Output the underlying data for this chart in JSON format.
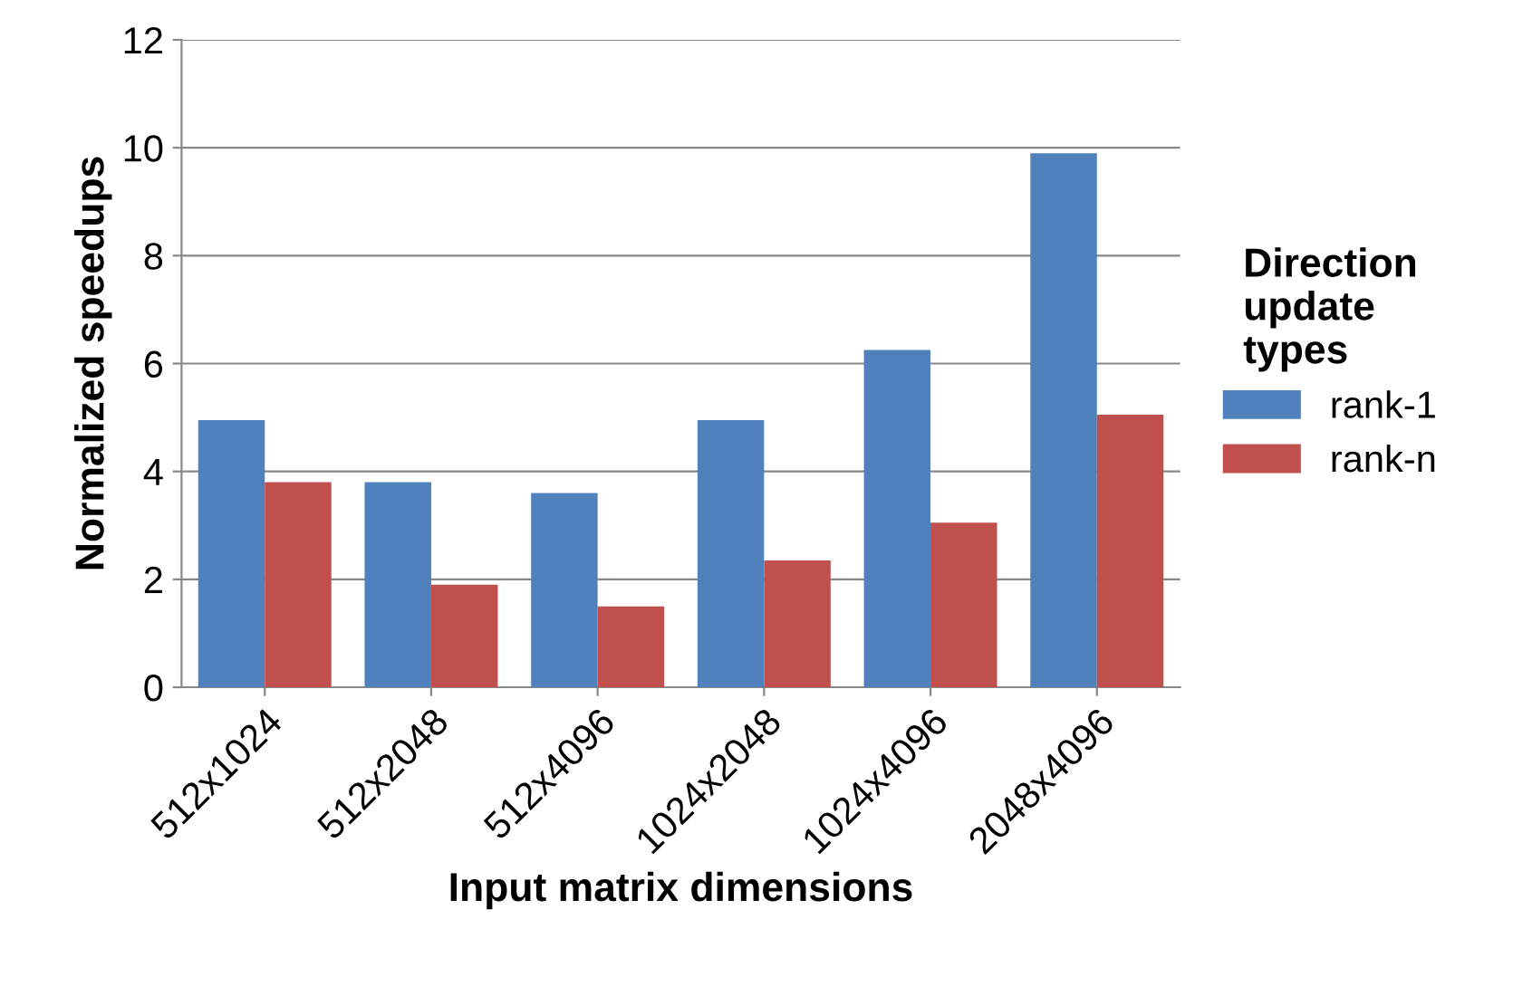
{
  "chart_data": {
    "type": "bar",
    "xlabel": "Input matrix dimensions",
    "ylabel": "Normalized speedups",
    "legend_title": "Direction\nupdate\ntypes",
    "categories": [
      "512x1024",
      "512x2048",
      "512x4096",
      "1024x2048",
      "1024x4096",
      "2048x4096"
    ],
    "series": [
      {
        "name": "rank-1",
        "color": "#4f81bd",
        "values": [
          4.95,
          3.8,
          3.6,
          4.95,
          6.25,
          9.9
        ]
      },
      {
        "name": "rank-n",
        "color": "#c0504d",
        "values": [
          3.8,
          1.9,
          1.5,
          2.35,
          3.05,
          5.05
        ]
      }
    ],
    "ylim": [
      0,
      12
    ],
    "yticks": [
      0,
      2,
      4,
      6,
      8,
      10,
      12
    ],
    "grid": "y",
    "legend": "right"
  }
}
